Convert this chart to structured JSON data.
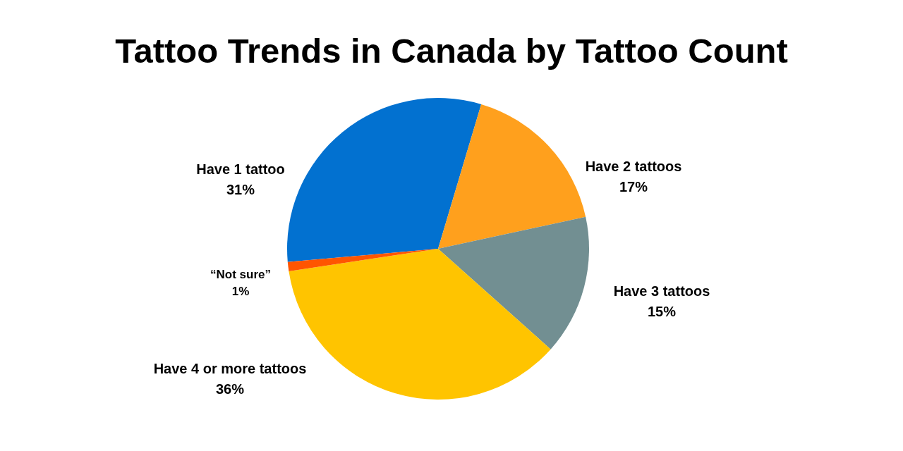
{
  "chart_data": {
    "type": "pie",
    "title": "Tattoo Trends in Canada by Tattoo Count",
    "categories": [
      "Have 1 tattoo",
      "Have 2 tattoos",
      "Have 3 tattoos",
      "Have 4 or more tattoos",
      "“Not sure”"
    ],
    "values": [
      31,
      17,
      15,
      36,
      1
    ],
    "colors": [
      "#0271d0",
      "#ffa01d",
      "#728f92",
      "#ffc400",
      "#ff5500"
    ],
    "value_labels": [
      "31%",
      "17%",
      "15%",
      "36%",
      "1%"
    ]
  }
}
